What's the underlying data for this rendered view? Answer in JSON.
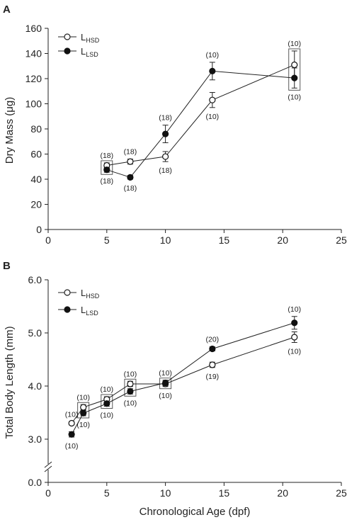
{
  "panels": [
    {
      "letter": "A",
      "ylabel": "Dry Mass (μg)",
      "xlabel": "",
      "xlim": [
        0,
        25
      ],
      "ylim": [
        0,
        160
      ],
      "xticks": [
        "0",
        "5",
        "10",
        "15",
        "20",
        "25"
      ],
      "yticks": [
        "0",
        "20",
        "40",
        "60",
        "80",
        "100",
        "120",
        "140",
        "160"
      ],
      "legend": {
        "placement": "top-left",
        "items": [
          {
            "main": "L",
            "sub": "HSD"
          },
          {
            "main": "L",
            "sub": "LSD"
          }
        ]
      },
      "boxes_at_x": [
        5,
        21
      ],
      "n_labels": [
        {
          "text": "(18)",
          "x": 5,
          "pos": "above"
        },
        {
          "text": "(18)",
          "x": 5,
          "pos": "below"
        },
        {
          "text": "(18)",
          "x": 7,
          "pos": "above"
        },
        {
          "text": "(18)",
          "x": 7,
          "pos": "below"
        },
        {
          "text": "(18)",
          "x": 10,
          "pos": "above"
        },
        {
          "text": "(18)",
          "x": 10,
          "pos": "below"
        },
        {
          "text": "(10)",
          "x": 14,
          "pos": "above"
        },
        {
          "text": "(10)",
          "x": 14,
          "pos": "below"
        },
        {
          "text": "(10)",
          "x": 21,
          "pos": "above"
        },
        {
          "text": "(10)",
          "x": 21,
          "pos": "below"
        }
      ]
    },
    {
      "letter": "B",
      "ylabel": "Total Body Length (mm)",
      "xlabel": "Chronological Age (dpf)",
      "xlim": [
        0,
        25
      ],
      "ylim": [
        2.8,
        6.0
      ],
      "axis_break": true,
      "xticks": [
        "0",
        "5",
        "10",
        "15",
        "20",
        "25"
      ],
      "yticks": [
        "0.0",
        "3.0",
        "4.0",
        "5.0",
        "6.0"
      ],
      "legend": {
        "placement": "top-left",
        "items": [
          {
            "main": "L",
            "sub": "HSD"
          },
          {
            "main": "L",
            "sub": "LSD"
          }
        ]
      },
      "boxes_at_x": [
        3,
        5,
        7,
        10
      ],
      "n_labels": [
        {
          "text": "(10)",
          "x": 2,
          "pos": "above"
        },
        {
          "text": "(10)",
          "x": 2,
          "pos": "below"
        },
        {
          "text": "(10)",
          "x": 3,
          "pos": "above"
        },
        {
          "text": "(10)",
          "x": 3,
          "pos": "below"
        },
        {
          "text": "(10)",
          "x": 5,
          "pos": "above"
        },
        {
          "text": "(10)",
          "x": 5,
          "pos": "below"
        },
        {
          "text": "(10)",
          "x": 7,
          "pos": "above"
        },
        {
          "text": "(10)",
          "x": 7,
          "pos": "below"
        },
        {
          "text": "(10)",
          "x": 10,
          "pos": "above"
        },
        {
          "text": "(10)",
          "x": 10,
          "pos": "below"
        },
        {
          "text": "(20)",
          "x": 14,
          "pos": "above"
        },
        {
          "text": "(19)",
          "x": 14,
          "pos": "below"
        },
        {
          "text": "(10)",
          "x": 21,
          "pos": "above"
        },
        {
          "text": "(10)",
          "x": 21,
          "pos": "below"
        }
      ]
    }
  ],
  "chart_data": [
    {
      "type": "line",
      "title": "",
      "xlabel": "",
      "ylabel": "Dry Mass (μg)",
      "xlim": [
        0,
        25
      ],
      "ylim": [
        0,
        160
      ],
      "grid": false,
      "legend_placement": "top-left",
      "series": [
        {
          "name": "LHSD",
          "marker": "open-circle",
          "color": "#222222",
          "x": [
            5,
            7,
            10,
            14,
            21
          ],
          "y": [
            51,
            54,
            58,
            103,
            131
          ],
          "err": [
            2,
            2,
            4,
            6,
            11
          ]
        },
        {
          "name": "LLSD",
          "marker": "filled-circle",
          "color": "#222222",
          "x": [
            5,
            7,
            10,
            14,
            21
          ],
          "y": [
            47.5,
            41.5,
            76,
            126,
            120.5
          ],
          "err": [
            2,
            1.5,
            7,
            7,
            8
          ]
        }
      ]
    },
    {
      "type": "line",
      "title": "",
      "xlabel": "Chronological Age (dpf)",
      "ylabel": "Total Body Length (mm)",
      "xlim": [
        0,
        25
      ],
      "ylim": [
        0.0,
        6.0
      ],
      "grid": false,
      "legend_placement": "top-left",
      "series": [
        {
          "name": "LHSD",
          "marker": "open-circle",
          "color": "#222222",
          "x": [
            2,
            3,
            5,
            7,
            10,
            14,
            21
          ],
          "y": [
            3.3,
            3.6,
            3.75,
            4.04,
            4.04,
            4.4,
            4.92
          ],
          "err": [
            0.03,
            0.05,
            0.05,
            0.05,
            0.05,
            0.05,
            0.1
          ]
        },
        {
          "name": "LLSD",
          "marker": "filled-circle",
          "color": "#222222",
          "x": [
            2,
            3,
            5,
            7,
            10,
            14,
            21
          ],
          "y": [
            3.09,
            3.49,
            3.67,
            3.9,
            4.06,
            4.7,
            5.19
          ],
          "err": [
            0.05,
            0.05,
            0.05,
            0.05,
            0.05,
            0.04,
            0.12
          ]
        }
      ]
    }
  ]
}
